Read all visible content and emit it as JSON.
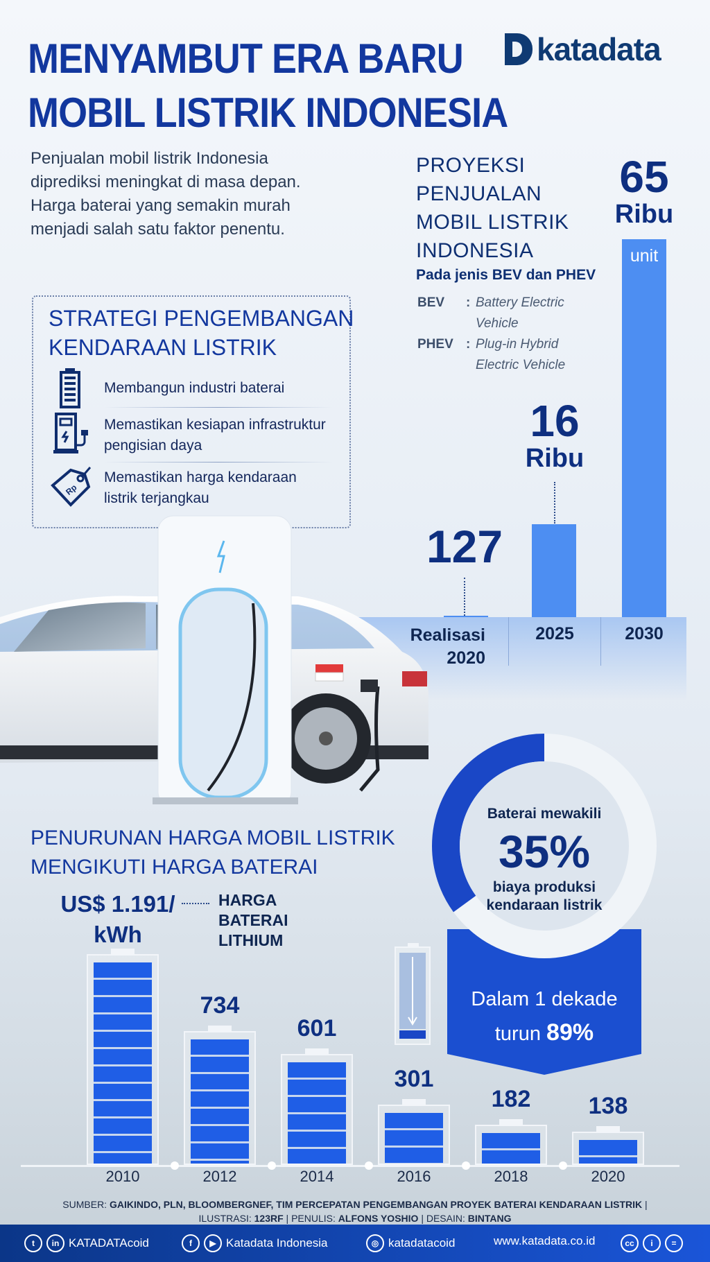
{
  "title": {
    "line1": "MENYAMBUT ERA BARU",
    "line2": "MOBIL LISTRIK INDONESIA"
  },
  "logo": {
    "text": "katadata"
  },
  "intro": "Penjualan mobil listrik Indonesia diprediksi meningkat di masa depan. Harga baterai yang semakin murah menjadi salah satu faktor penentu.",
  "projection": {
    "heading": [
      "PROYEKSI",
      "PENJUALAN",
      "MOBIL LISTRIK",
      "INDONESIA"
    ],
    "subtitle": "Pada jenis BEV dan PHEV",
    "definitions": [
      {
        "key": "BEV",
        "sep": ":",
        "value": "Battery Electric Vehicle"
      },
      {
        "key": "PHEV",
        "sep": ":",
        "value": "Plug-in Hybrid Electric Vehicle"
      }
    ],
    "unit": "unit",
    "labels": [
      {
        "value": "127",
        "suffix": ""
      },
      {
        "value": "16",
        "suffix": "Ribu"
      },
      {
        "value": "65",
        "suffix": "Ribu"
      }
    ],
    "categories": [
      "Realisasi 2020",
      "2025",
      "2030"
    ],
    "bar_color": "#4d8ef2"
  },
  "strategy": {
    "heading": [
      "STRATEGI PENGEMBANGAN",
      "KENDARAAN LISTRIK"
    ],
    "items": [
      {
        "icon": "battery-icon",
        "text": "Membangun industri baterai"
      },
      {
        "icon": "charging-station-icon",
        "text": "Memastikan kesiapan infrastruktur pengisian daya"
      },
      {
        "icon": "price-tag-icon",
        "text": "Memastikan harga kendaraan listrik terjangkau"
      }
    ]
  },
  "battery_share": {
    "line1": "Baterai mewakili",
    "value": "35%",
    "line2": "biaya produksi",
    "line3": "kendaraan listrik",
    "percent": 35
  },
  "decade": {
    "line1": "Dalam 1 dekade",
    "prefix": "turun",
    "value": "89%"
  },
  "price_section": {
    "heading": [
      "PENURUNAN HARGA MOBIL LISTRIK",
      "MENGIKUTI HARGA BATERAI"
    ],
    "first_label": [
      "US$ 1.191/",
      "kWh"
    ],
    "legend": [
      "HARGA",
      "BATERAI",
      "LITHIUM"
    ],
    "value_labels": [
      "734",
      "601",
      "301",
      "182",
      "138"
    ]
  },
  "chart_data": [
    {
      "type": "bar",
      "title": "PROYEKSI PENJUALAN MOBIL LISTRIK INDONESIA",
      "subtitle": "Pada jenis BEV dan PHEV",
      "categories": [
        "Realisasi 2020",
        "2025",
        "2030"
      ],
      "values": [
        127,
        16000,
        65000
      ],
      "ylabel": "unit"
    },
    {
      "type": "bar",
      "title": "HARGA BATERAI LITHIUM",
      "categories": [
        "2010",
        "2012",
        "2014",
        "2016",
        "2018",
        "2020"
      ],
      "values": [
        1191,
        734,
        601,
        301,
        182,
        138
      ],
      "ylabel": "US$/kWh"
    }
  ],
  "source": {
    "line1_label": "SUMBER:",
    "line1_value": "GAIKINDO, PLN, BLOOMBERGNEF,  TIM PERCEPATAN PENGEMBANGAN PROYEK BATERAI KENDARAAN LISTRIK",
    "illus_label": "ILUSTRASI:",
    "illus_value": "123RF",
    "writer_label": "PENULIS:",
    "writer_value": "ALFONS YOSHIO",
    "design_label": "DESAIN:",
    "design_value": "BINTANG"
  },
  "footer": {
    "twitter_linkedin": "KATADATAcoid",
    "facebook_youtube": "Katadata Indonesia",
    "instagram": "katadatacoid",
    "website": "www.katadata.co.id"
  }
}
